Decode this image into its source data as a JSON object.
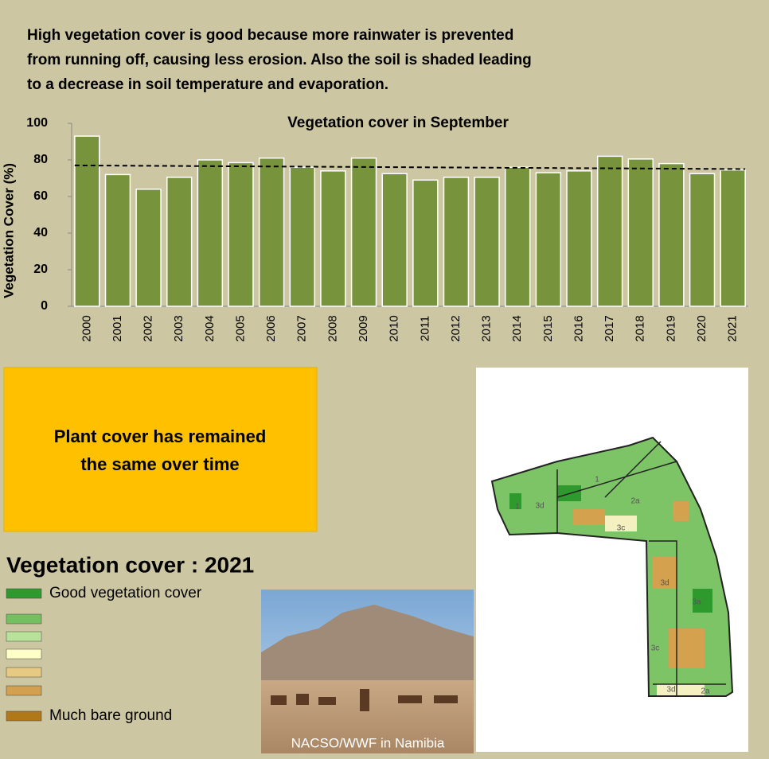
{
  "intro": [
    "High vegetation cover is good because more rainwater is prevented",
    "from running off, causing less erosion. Also the soil is shaded leading",
    "to a decrease in soil temperature and evaporation."
  ],
  "chart_data": {
    "type": "bar",
    "title": "Vegetation cover in September",
    "y_label": "Vegetation Cover (%)",
    "categories": [
      "2000",
      "2001",
      "2002",
      "2003",
      "2004",
      "2005",
      "2006",
      "2007",
      "2008",
      "2009",
      "2010",
      "2011",
      "2012",
      "2013",
      "2014",
      "2015",
      "2016",
      "2017",
      "2018",
      "2019",
      "2020",
      "2021"
    ],
    "values": [
      93,
      72,
      64,
      70.5,
      80,
      78.5,
      81,
      76,
      74,
      81,
      72.5,
      69,
      70.5,
      70.5,
      76,
      73,
      74,
      82,
      80.5,
      78,
      72.5,
      74.5
    ],
    "color": "#77933c",
    "trend": [
      77,
      75
    ],
    "trend_color": "#000000",
    "ylim": [
      0,
      100
    ],
    "yticks": [
      0,
      20,
      40,
      60,
      80,
      100
    ]
  },
  "callout": [
    "Plant cover has remained",
    "the same over time"
  ],
  "legend": {
    "title": "Vegetation cover : 2021",
    "items": [
      {
        "label": "Good vegetation cover",
        "color": "#2e9a2e"
      },
      {
        "color": "#74c060"
      },
      {
        "color": "#b8e29a"
      },
      {
        "color": "#ffffc8"
      },
      {
        "color": "#e6c982"
      },
      {
        "color": "#d2a04e"
      },
      {
        "label": "Much bare ground",
        "color": "#b07818"
      }
    ]
  },
  "photo_caption": "NACSO/WWF in Namibia",
  "map": {
    "labels": [
      "1",
      "1",
      "3d",
      "2a",
      "3c",
      "3d",
      "3a",
      "3c",
      "3d",
      "2a"
    ]
  }
}
